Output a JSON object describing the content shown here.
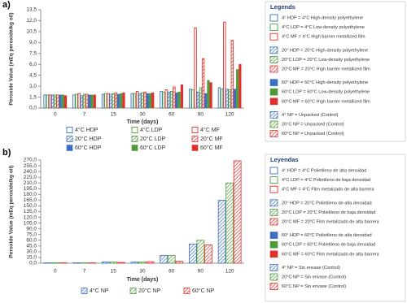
{
  "charts": [
    {
      "chart_data": {
        "type": "bar",
        "panel_label": "a)",
        "x_label": "Time (days)",
        "y_label": "Peroxide Value (mEq peroxide/kg oil)",
        "legend": "bottom",
        "grid": false,
        "categories": [
          "0",
          "7",
          "15",
          "30",
          "60",
          "90",
          "120"
        ],
        "ylim": [
          0,
          13.5
        ],
        "yticks": [
          {
            "value": 0,
            "label": "0,0"
          },
          {
            "value": 1.5,
            "label": "1,5"
          },
          {
            "value": 3,
            "label": "3,0"
          },
          {
            "value": 4.5,
            "label": "4,5"
          },
          {
            "value": 6,
            "label": "6,0"
          },
          {
            "value": 7.5,
            "label": "7,5"
          },
          {
            "value": 9,
            "label": "9,0"
          },
          {
            "value": 10.5,
            "label": "10,5"
          },
          {
            "value": 12,
            "label": "12,0"
          },
          {
            "value": 13.5,
            "label": "13,5"
          }
        ],
        "series": [
          {
            "name": "4°C HDP",
            "color": "#3b6fc4",
            "style": "outline",
            "values": [
              1.8,
              1.8,
              1.9,
              2.0,
              2.3,
              2.6,
              2.8
            ]
          },
          {
            "name": "4°C LDP",
            "color": "#4f9a3a",
            "style": "outline",
            "values": [
              1.8,
              1.9,
              2.0,
              2.0,
              2.2,
              2.5,
              2.6
            ]
          },
          {
            "name": "4°C MF",
            "color": "#e0302c",
            "style": "outline",
            "values": [
              1.8,
              2.0,
              2.0,
              2.3,
              2.5,
              11.0,
              11.8
            ]
          },
          {
            "name": "20°C HDP",
            "color": "#3b6fc4",
            "style": "hatch",
            "values": [
              1.8,
              1.7,
              1.9,
              2.0,
              2.2,
              2.2,
              2.6
            ]
          },
          {
            "name": "20°C LDP",
            "color": "#4f9a3a",
            "style": "hatch",
            "values": [
              1.8,
              1.9,
              2.0,
              2.1,
              2.3,
              2.8,
              2.5
            ]
          },
          {
            "name": "20°C MF",
            "color": "#e0302c",
            "style": "hatch",
            "values": [
              1.8,
              1.9,
              2.1,
              2.2,
              2.9,
              6.8,
              9.3
            ]
          },
          {
            "name": "60°C HDP",
            "color": "#3b6fc4",
            "style": "solid",
            "values": [
              1.8,
              1.8,
              1.9,
              2.0,
              2.1,
              2.0,
              2.6
            ]
          },
          {
            "name": "60°C LDP",
            "color": "#4f9a3a",
            "style": "solid",
            "values": [
              1.8,
              1.8,
              2.0,
              2.0,
              2.2,
              3.8,
              5.3
            ]
          },
          {
            "name": "60°C MF",
            "color": "#e0302c",
            "style": "solid",
            "values": [
              1.7,
              1.8,
              2.1,
              2.1,
              3.2,
              3.5,
              6.0
            ]
          }
        ]
      }
    },
    {
      "chart_data": {
        "type": "bar",
        "panel_label": "b)",
        "x_label": "Time (days)",
        "y_label": "Peroxide Value (mEq peroxide/kg oil)",
        "legend": "bottom",
        "grid": false,
        "categories": [
          "0",
          "7",
          "15",
          "30",
          "60",
          "90",
          "120"
        ],
        "ylim": [
          0,
          270
        ],
        "yticks": [
          {
            "value": 0,
            "label": "0,0"
          },
          {
            "value": 15,
            "label": "15,0"
          },
          {
            "value": 30,
            "label": "30,0"
          },
          {
            "value": 45,
            "label": "45,0"
          },
          {
            "value": 60,
            "label": "60,0"
          },
          {
            "value": 75,
            "label": "75,0"
          },
          {
            "value": 90,
            "label": "90,0"
          },
          {
            "value": 105,
            "label": "105,0"
          },
          {
            "value": 120,
            "label": "120,0"
          },
          {
            "value": 135,
            "label": "135,0"
          },
          {
            "value": 150,
            "label": "150,0"
          },
          {
            "value": 165,
            "label": "165,0"
          },
          {
            "value": 180,
            "label": "180,0"
          },
          {
            "value": 195,
            "label": "195,0"
          },
          {
            "value": 210,
            "label": "210,0"
          },
          {
            "value": 225,
            "label": "225,0"
          },
          {
            "value": 240,
            "label": "240,0"
          },
          {
            "value": 255,
            "label": "255,0"
          },
          {
            "value": 270,
            "label": "270,0"
          }
        ],
        "series": [
          {
            "name": "4°C NP",
            "color": "#3b6fc4",
            "style": "hatch",
            "values": [
              1,
              1,
              3,
              3,
              20,
              50,
              165
            ]
          },
          {
            "name": "20°C NP",
            "color": "#4f9a3a",
            "style": "hatch",
            "values": [
              1,
              1,
              3,
              3,
              20,
              60,
              210
            ]
          },
          {
            "name": "60°C NP",
            "color": "#e0302c",
            "style": "hatch",
            "values": [
              1,
              1,
              2,
              4,
              5,
              48,
              268
            ]
          }
        ]
      }
    }
  ],
  "legend_panels": [
    {
      "title": "Legends",
      "items": [
        {
          "text": "4° HDP = 4°C  High-density polyethylene",
          "color": "#3b6fc4",
          "style": "outline"
        },
        {
          "text": "4°C LDP = 4°C Low-density polyethylene",
          "color": "#4f9a3a",
          "style": "outline"
        },
        {
          "text": "4°C MF = 4°C High barrier metallized film",
          "color": "#e0302c",
          "style": "outline"
        },
        {
          "text": "20° HDP = 20°C  High-density polyethylene",
          "color": "#3b6fc4",
          "style": "hatch"
        },
        {
          "text": "20°C LDP = 20°C Low-density polyethylene",
          "color": "#4f9a3a",
          "style": "hatch"
        },
        {
          "text": "20°C MF = 20°C High barrier metallized film",
          "color": "#e0302c",
          "style": "hatch"
        },
        {
          "text": "60° HDP = 60°C  High-density polyethylene",
          "color": "#3b6fc4",
          "style": "solid"
        },
        {
          "text": "60°C LDP = 60°C Low-density polyethylene",
          "color": "#4f9a3a",
          "style": "solid"
        },
        {
          "text": "60°C MF = 60°C High barrier metallized film",
          "color": "#e0302c",
          "style": "solid"
        },
        {
          "text": "4° NP = Unpacked (Control)",
          "color": "#3b6fc4",
          "style": "hatch"
        },
        {
          "text": "20°C NP = Unpacked (Control)",
          "color": "#4f9a3a",
          "style": "hatch"
        },
        {
          "text": "60°C NP = Unpacked (Control)",
          "color": "#e0302c",
          "style": "hatch"
        }
      ]
    },
    {
      "title": "Leyendas",
      "items": [
        {
          "text": "4° HDP = 4°C  Polietileno de alta densidad",
          "color": "#3b6fc4",
          "style": "outline"
        },
        {
          "text": "4°C LDP = 4°C Polietileno de baja densidad",
          "color": "#4f9a3a",
          "style": "outline"
        },
        {
          "text": "4°C MF = 4°C Film metalizado de alta barrera",
          "color": "#e0302c",
          "style": "outline"
        },
        {
          "text": "20° HDP = 20°C  Polietileno de alta densidad",
          "color": "#3b6fc4",
          "style": "hatch"
        },
        {
          "text": "20°C LDP = 20°C Polietileno de baja densidad",
          "color": "#4f9a3a",
          "style": "hatch"
        },
        {
          "text": "20°C MF = 20°C Film metalizado de alta barrera",
          "color": "#e0302c",
          "style": "hatch"
        },
        {
          "text": "60° HDP = 60°C  Polietileno de alta densidad",
          "color": "#3b6fc4",
          "style": "solid"
        },
        {
          "text": "60°C LDP = 60°C Polietileno de baja densidad",
          "color": "#4f9a3a",
          "style": "solid"
        },
        {
          "text": "60°C MF = 60°C Film metalizado de alta barrera",
          "color": "#e0302c",
          "style": "solid"
        },
        {
          "text": "4° NP = Sin envase (Control)",
          "color": "#3b6fc4",
          "style": "hatch"
        },
        {
          "text": "20°C NP = Sin envase (Control)",
          "color": "#4f9a3a",
          "style": "hatch"
        },
        {
          "text": "60°C NP = Sin envase (Control)",
          "color": "#e0302c",
          "style": "hatch"
        }
      ]
    }
  ]
}
